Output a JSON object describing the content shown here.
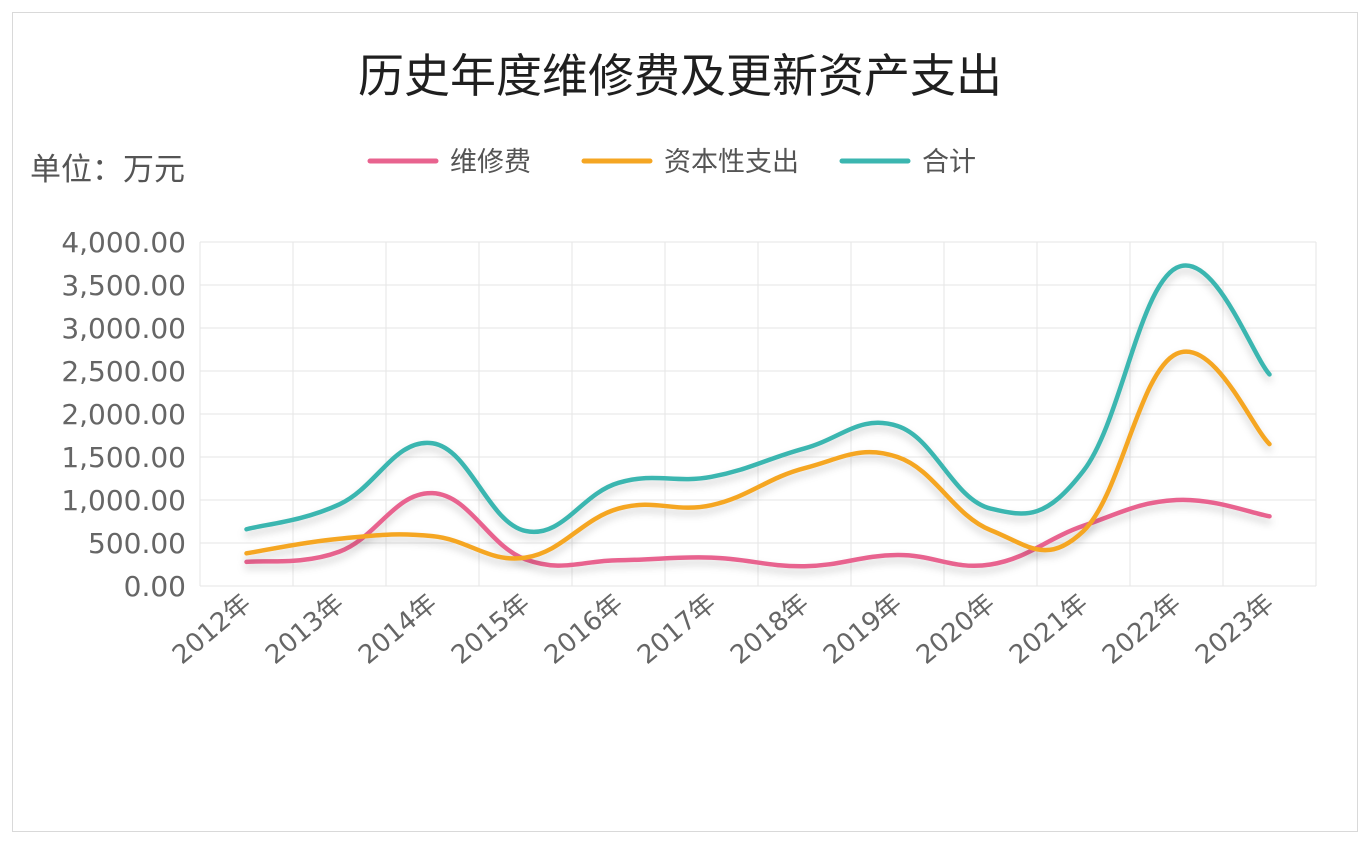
{
  "chart_data": {
    "type": "line",
    "title": "历史年度维修费及更新资产支出",
    "unit_label": "单位：万元",
    "categories": [
      "2012年",
      "2013年",
      "2014年",
      "2015年",
      "2016年",
      "2017年",
      "2018年",
      "2019年",
      "2020年",
      "2021年",
      "2022年",
      "2023年"
    ],
    "ylim": [
      0,
      4000
    ],
    "yticks": [
      0,
      500,
      1000,
      1500,
      2000,
      2500,
      3000,
      3500,
      4000
    ],
    "ytick_labels": [
      "0.00",
      "500.00",
      "1,000.00",
      "1,500.00",
      "2,000.00",
      "2,500.00",
      "3,000.00",
      "3,500.00",
      "4,000.00"
    ],
    "grid": true,
    "legend_position": "top",
    "smooth": true,
    "series": [
      {
        "name": "维修费",
        "color": "#e8638f",
        "values": [
          280,
          400,
          1080,
          310,
          300,
          330,
          230,
          360,
          250,
          700,
          1000,
          810
        ]
      },
      {
        "name": "资本性支出",
        "color": "#f5a623",
        "values": [
          380,
          550,
          580,
          330,
          900,
          940,
          1370,
          1500,
          650,
          640,
          2700,
          1650
        ]
      },
      {
        "name": "合计",
        "color": "#3bb6b0",
        "values": [
          660,
          950,
          1660,
          640,
          1200,
          1270,
          1600,
          1860,
          900,
          1340,
          3700,
          2460
        ]
      }
    ]
  }
}
